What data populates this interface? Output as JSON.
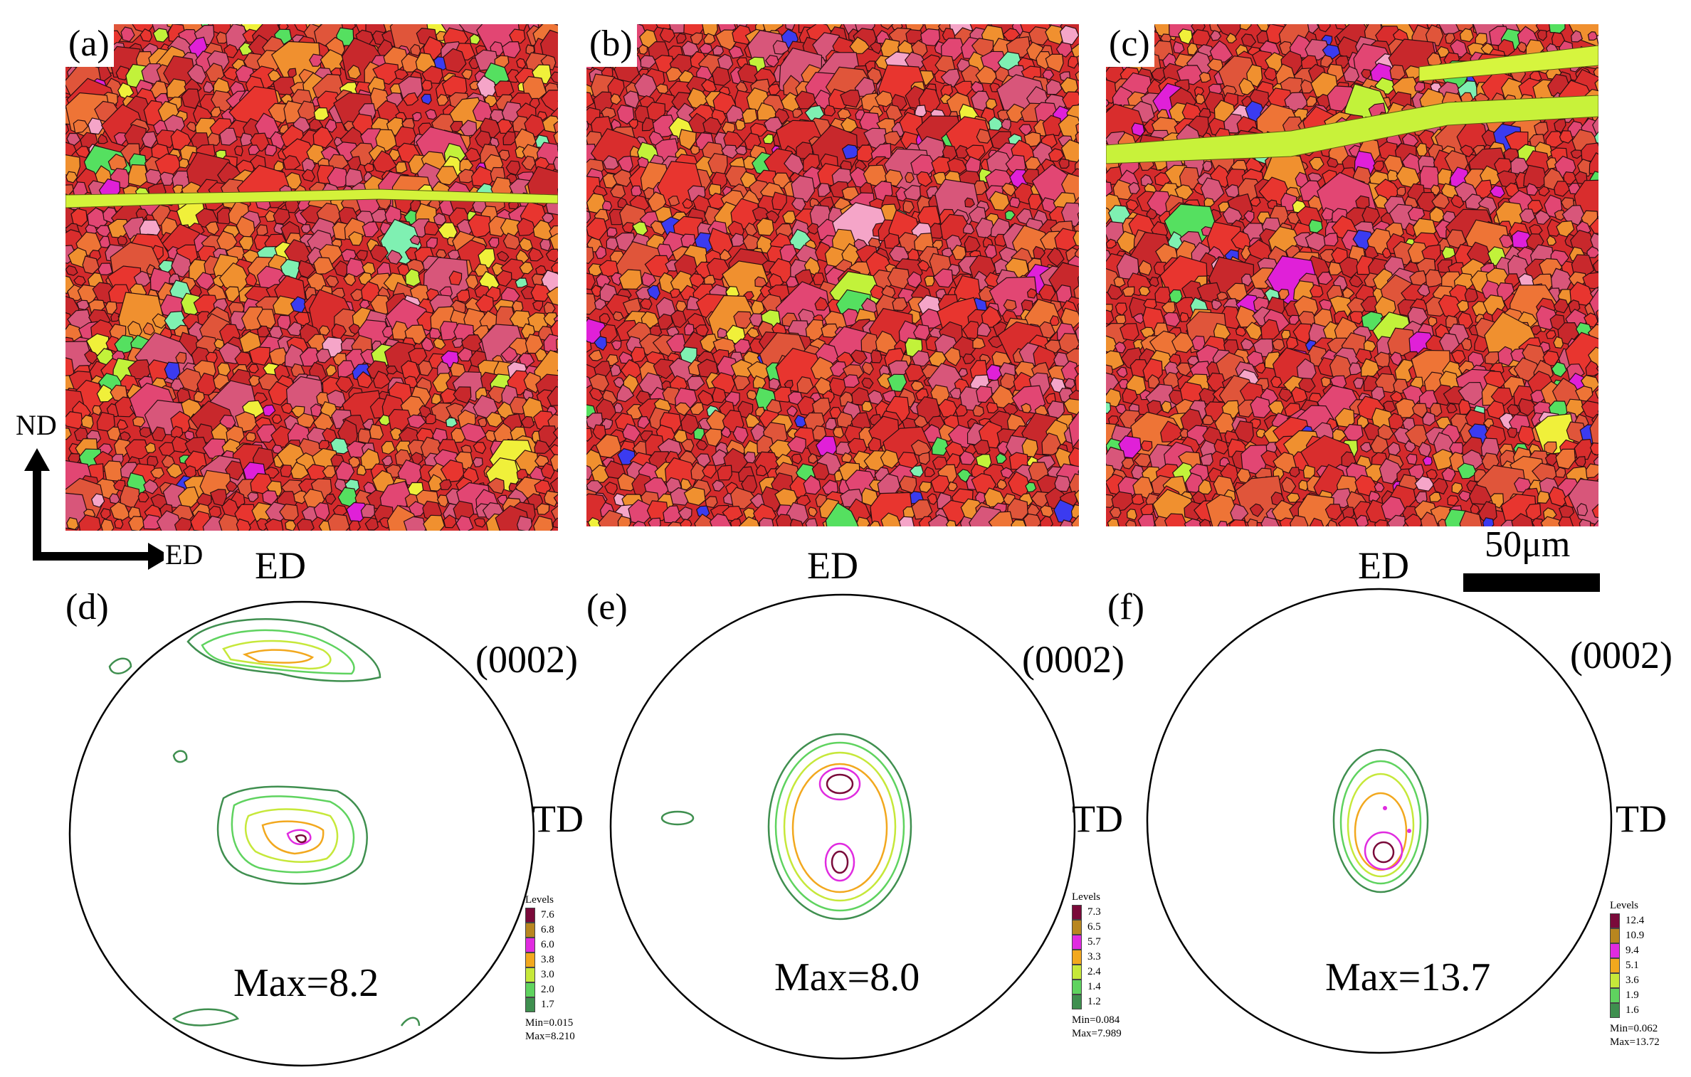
{
  "maps": [
    {
      "label": "(a)"
    },
    {
      "label": "(b)"
    },
    {
      "label": "(c)"
    }
  ],
  "axes": {
    "nd": "ND",
    "ed": "ED"
  },
  "scale_bar": {
    "text": "50μm"
  },
  "pole_figures": [
    {
      "label": "(d)",
      "top": "ED",
      "right": "TD",
      "plane": "(0002)",
      "max_text": "Max=8.2",
      "legend": {
        "title": "Levels",
        "levels": [
          "7.6",
          "6.8",
          "6.0",
          "3.8",
          "3.0",
          "2.0",
          "1.7"
        ],
        "min": "Min=0.015",
        "max": "Max=8.210"
      }
    },
    {
      "label": "(e)",
      "top": "ED",
      "right": "TD",
      "plane": "(0002)",
      "max_text": "Max=8.0",
      "legend": {
        "title": "Levels",
        "levels": [
          "7.3",
          "6.5",
          "5.7",
          "3.3",
          "2.4",
          "1.4",
          "1.2"
        ],
        "min": "Min=0.084",
        "max": "Max=7.989"
      }
    },
    {
      "label": "(f)",
      "top": "ED",
      "right": "TD",
      "plane": "(0002)",
      "max_text": "Max=13.7",
      "legend": {
        "title": "Levels",
        "levels": [
          "12.4",
          "10.9",
          "9.4",
          "5.1",
          "3.6",
          "1.9",
          "1.6"
        ],
        "min": "Min=0.062",
        "max": "Max=13.72"
      }
    }
  ],
  "colors": {
    "levels": [
      "#7a0a3a",
      "#b8861f",
      "#e02be0",
      "#f2a81e",
      "#c6e83a",
      "#5fd35f",
      "#3f8f4f"
    ],
    "grain_palette": [
      "#e8352f",
      "#d92d2d",
      "#c8282c",
      "#e0553a",
      "#ee7436",
      "#d8567a",
      "#e24673",
      "#f0902f"
    ],
    "minor_grains": [
      "#3b3bf0",
      "#c2f23a",
      "#f0f03a",
      "#7ff0b2",
      "#e020d8",
      "#55e060",
      "#f5a5c8"
    ]
  }
}
